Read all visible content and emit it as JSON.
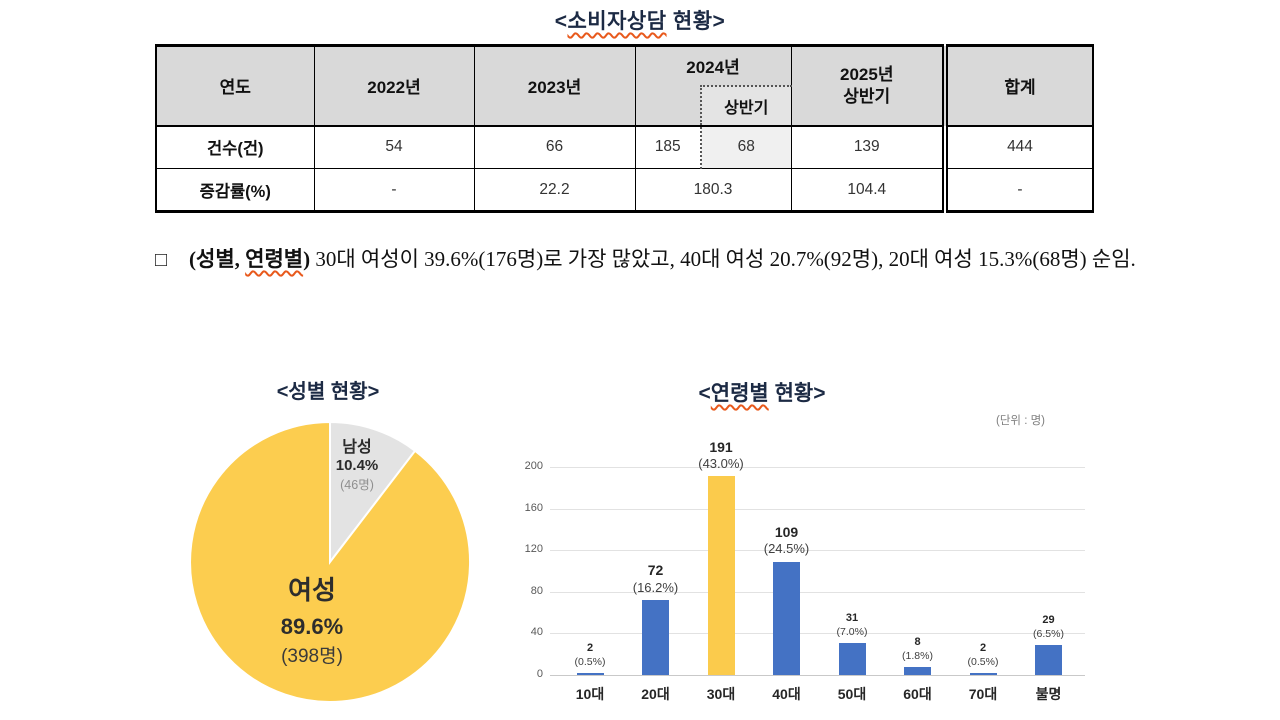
{
  "doc": {
    "title_open": "<",
    "title_wavy": "소비자상담",
    "title_rest": " 현황>"
  },
  "table": {
    "header": {
      "col_year": "연도",
      "col_2022": "2022년",
      "col_2023": "2023년",
      "col_2024": "2024년",
      "col_2024_sub": "상반기",
      "col_2025_line1": "2025년",
      "col_2025_line2": "상반기",
      "col_total": "합계"
    },
    "row_counts": {
      "label": "건수(건)",
      "v2022": "54",
      "v2023": "66",
      "v2024": "185",
      "v2024_sub": "68",
      "v2025": "139",
      "total": "444"
    },
    "row_change": {
      "label": "증감률(%)",
      "v2022": "-",
      "v2023": "22.2",
      "v2024": "180.3",
      "v2025": "104.4",
      "total": "-"
    }
  },
  "paragraph": {
    "bullet": "□",
    "lead_open": "(성별, ",
    "lead_wavy": "연령별",
    "lead_close": ")",
    "body": " 30대 여성이 39.6%(176명)로 가장 많았고, 40대 여성 20.7%(92명), 20대 여성 15.3%(68명) 순임."
  },
  "chart_data": [
    {
      "type": "pie",
      "title": "<성별 현황>",
      "slices": [
        {
          "label": "남성",
          "pct": 10.4,
          "pct_label": "10.4%",
          "count_label": "(46명)",
          "count": 46,
          "color": "#E3E3E3"
        },
        {
          "label": "여성",
          "pct": 89.6,
          "pct_label": "89.6%",
          "count_label": "(398명)",
          "count": 398,
          "color": "#FCCD4F"
        }
      ]
    },
    {
      "type": "bar",
      "title_open": "<",
      "title_wavy": "연령별",
      "title_rest": " 현황>",
      "unit_note": "(단위 : 명)",
      "categories": [
        "10대",
        "20대",
        "30대",
        "40대",
        "50대",
        "60대",
        "70대",
        "불명"
      ],
      "values": [
        2,
        72,
        191,
        109,
        31,
        8,
        2,
        29
      ],
      "value_labels": [
        "2",
        "72",
        "191",
        "109",
        "31",
        "8",
        "2",
        "29"
      ],
      "pct_labels": [
        "(0.5%)",
        "(16.2%)",
        "(43.0%)",
        "(24.5%)",
        "(7.0%)",
        "(1.8%)",
        "(0.5%)",
        "(6.5%)"
      ],
      "ylim": [
        0,
        200
      ],
      "yticks": [
        0,
        40,
        80,
        120,
        160,
        200
      ],
      "bar_color": "#4472C4",
      "highlight_index": 2,
      "highlight_color": "#FBCB4C",
      "grid": true,
      "legend": "none"
    }
  ]
}
